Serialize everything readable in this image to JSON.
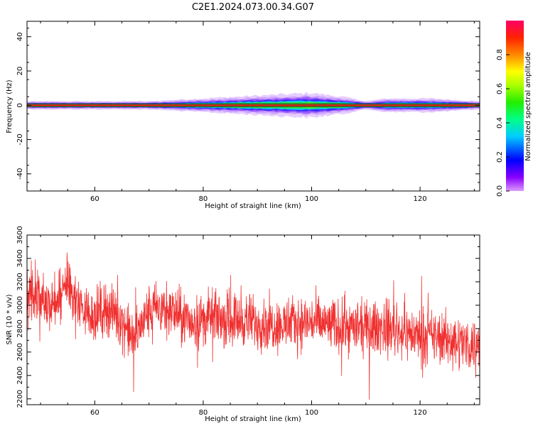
{
  "title": "C2E1.2024.073.00.34.G07",
  "colors": {
    "snr_line": "#f03030",
    "spectrum_band_core": "#e01010"
  },
  "chart_data": [
    {
      "type": "heatmap",
      "name": "spectrogram",
      "xlabel": "Height of straight line (km)",
      "ylabel": "Frequency (Hz)",
      "xlim": [
        47.5,
        131
      ],
      "ylim": [
        -50,
        49
      ],
      "x_ticks": [
        60,
        80,
        100,
        120
      ],
      "y_ticks": [
        -40,
        -20,
        0,
        20,
        40
      ],
      "grid": false,
      "colorbar": {
        "label": "Normalized spectral amplitude",
        "range": [
          0,
          1
        ],
        "ticks": [
          0.0,
          0.2,
          0.4,
          0.6,
          0.8
        ],
        "tick_labels": [
          "0.0",
          "0.2",
          "0.4",
          "0.6",
          "0.8"
        ],
        "colormap": [
          "#cc88ff",
          "#6600ff",
          "#0000ff",
          "#00ccff",
          "#00ff88",
          "#22ee00",
          "#aaff00",
          "#ffff00",
          "#ff8800",
          "#ff2200",
          "#ff0044",
          "#ff0066"
        ]
      },
      "band": {
        "center_hz": 0,
        "halfwidth_hz": [
          [
            47.5,
            1.5
          ],
          [
            60,
            1.5
          ],
          [
            70,
            1.5
          ],
          [
            80,
            2.5
          ],
          [
            90,
            3.5
          ],
          [
            100,
            4.5
          ],
          [
            106,
            3
          ],
          [
            110,
            1.5
          ],
          [
            114,
            2.5
          ],
          [
            122,
            2.5
          ],
          [
            131,
            1.5
          ]
        ]
      }
    },
    {
      "type": "line",
      "name": "snr",
      "xlabel": "Height of straight line (km)",
      "ylabel": "SNR (10 * v/v)",
      "xlim": [
        47.5,
        131
      ],
      "ylim": [
        2150,
        3600
      ],
      "x_ticks": [
        60,
        80,
        100,
        120
      ],
      "y_ticks": [
        2200,
        2400,
        2600,
        2800,
        3000,
        3200,
        3400,
        3600
      ],
      "grid": false,
      "series": [
        {
          "x": [
            47.5,
            50,
            52,
            54,
            55,
            56,
            58,
            60,
            62,
            64,
            66,
            67,
            68,
            70,
            72,
            75,
            78,
            80,
            82,
            85,
            88,
            90,
            92,
            95,
            98,
            100,
            102,
            105,
            108,
            110,
            112,
            114,
            116,
            118,
            120,
            122,
            124,
            126,
            128,
            130,
            131
          ],
          "y": [
            3150,
            3080,
            2980,
            3100,
            3200,
            3080,
            2950,
            2920,
            2980,
            2920,
            2800,
            2700,
            2780,
            2950,
            2980,
            2930,
            2850,
            2880,
            2900,
            2880,
            2870,
            2850,
            2840,
            2830,
            2850,
            2860,
            2840,
            2820,
            2810,
            2800,
            2810,
            2820,
            2780,
            2760,
            2740,
            2730,
            2720,
            2700,
            2680,
            2660,
            2700
          ],
          "noise_amplitude": 140
        }
      ]
    }
  ]
}
